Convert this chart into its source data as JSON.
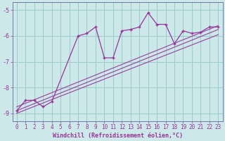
{
  "xlabel": "Windchill (Refroidissement éolien,°C)",
  "bg_color": "#cce8e8",
  "grid_color": "#99cccc",
  "line_color": "#993399",
  "spine_color": "#666699",
  "xlim": [
    -0.5,
    23.5
  ],
  "ylim": [
    -9.3,
    -4.7
  ],
  "yticks": [
    -9,
    -8,
    -7,
    -6,
    -5
  ],
  "xticks": [
    0,
    1,
    2,
    3,
    4,
    5,
    6,
    7,
    8,
    9,
    10,
    11,
    12,
    13,
    14,
    15,
    16,
    17,
    18,
    19,
    20,
    21,
    22,
    23
  ],
  "main_x": [
    0,
    1,
    2,
    3,
    4,
    7,
    8,
    9,
    10,
    11,
    12,
    13,
    14,
    15,
    16,
    17,
    18,
    19,
    20,
    21,
    22,
    23
  ],
  "main_y": [
    -8.9,
    -8.5,
    -8.5,
    -8.75,
    -8.55,
    -6.0,
    -5.9,
    -5.65,
    -6.85,
    -6.85,
    -5.8,
    -5.75,
    -5.65,
    -5.1,
    -5.55,
    -5.55,
    -6.3,
    -5.8,
    -5.9,
    -5.85,
    -5.65,
    -5.65
  ],
  "line1_x": [
    0,
    23
  ],
  "line1_y": [
    -8.9,
    -5.75
  ],
  "line2_x": [
    0,
    23
  ],
  "line2_y": [
    -9.0,
    -5.95
  ],
  "line3_x": [
    0,
    23
  ],
  "line3_y": [
    -8.75,
    -5.6
  ],
  "tick_fontsize": 5.5,
  "label_fontsize": 6.0
}
